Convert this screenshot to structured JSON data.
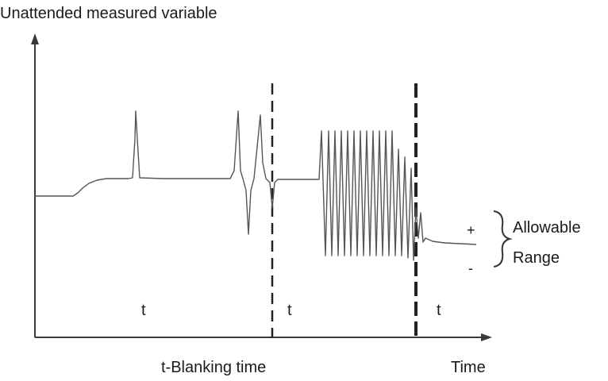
{
  "diagram": {
    "y_axis_label": "Unattended measured variable",
    "x_axis_label": "Time",
    "caption": "t-Blanking time",
    "interval_label": "t",
    "plus_sign": "+",
    "minus_sign": "-",
    "range_label_line1": "Allowable",
    "range_label_line2": "Range"
  }
}
